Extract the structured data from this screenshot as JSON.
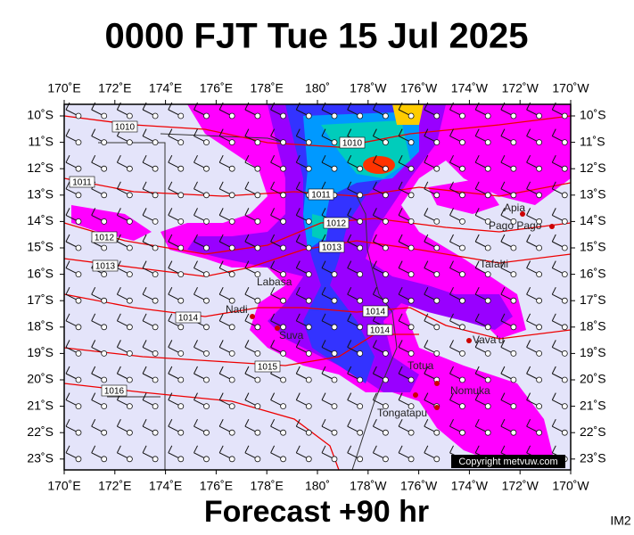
{
  "header": {
    "title": "0000 FJT Tue 15 Jul 2025"
  },
  "footer": {
    "forecast": "Forecast +90 hr",
    "code": "IM2"
  },
  "map": {
    "lon_labels": [
      "170˚E",
      "172˚E",
      "174˚E",
      "176˚E",
      "178˚E",
      "180˚",
      "178˚W",
      "176˚W",
      "174˚W",
      "172˚W",
      "170˚W"
    ],
    "lat_labels": [
      "10˚S",
      "11˚S",
      "12˚S",
      "13˚S",
      "14˚S",
      "15˚S",
      "16˚S",
      "17˚S",
      "18˚S",
      "19˚S",
      "20˚S",
      "21˚S",
      "22˚S",
      "23˚S"
    ],
    "places": [
      {
        "label": "Apia"
      },
      {
        "label": "Pago Pago"
      },
      {
        "label": "Tafahi"
      },
      {
        "label": "Labasa"
      },
      {
        "label": "Nadi"
      },
      {
        "label": "Suva"
      },
      {
        "label": "Vava'u"
      },
      {
        "label": "Totua"
      },
      {
        "label": "Nomuka"
      },
      {
        "label": "Tongatapu"
      }
    ],
    "isobars": [
      {
        "label": "1010"
      },
      {
        "label": "1010"
      },
      {
        "label": "1011"
      },
      {
        "label": "1011"
      },
      {
        "label": "1012"
      },
      {
        "label": "1012"
      },
      {
        "label": "1013"
      },
      {
        "label": "1013"
      },
      {
        "label": "1014"
      },
      {
        "label": "1014"
      },
      {
        "label": "1014"
      },
      {
        "label": "1015"
      },
      {
        "label": "1016"
      }
    ],
    "copyright": "Copyright metvuw.com"
  }
}
